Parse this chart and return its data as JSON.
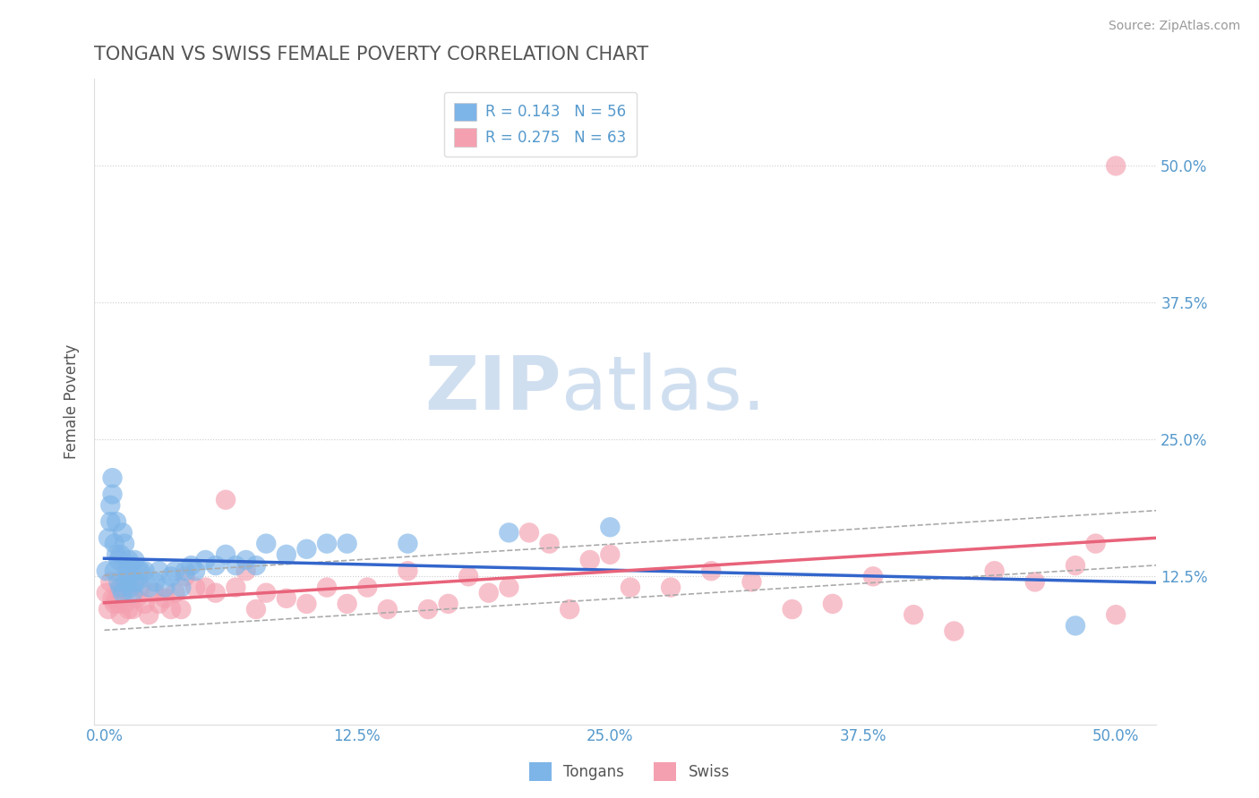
{
  "title": "TONGAN VS SWISS FEMALE POVERTY CORRELATION CHART",
  "source_text": "Source: ZipAtlas.com",
  "ylabel": "Female Poverty",
  "xlim": [
    -0.005,
    0.52
  ],
  "ylim": [
    -0.01,
    0.58
  ],
  "xtick_labels": [
    "0.0%",
    "",
    "",
    "",
    "",
    "",
    "",
    "",
    "12.5%",
    "",
    "",
    "",
    "",
    "",
    "",
    "",
    "25.0%",
    "",
    "",
    "",
    "",
    "",
    "",
    "",
    "37.5%",
    "",
    "",
    "",
    "",
    "",
    "",
    "",
    "50.0%"
  ],
  "xtick_vals": [
    0.0,
    0.125,
    0.25,
    0.375,
    0.5
  ],
  "xtick_display": [
    "0.0%",
    "12.5%",
    "25.0%",
    "37.5%",
    "50.0%"
  ],
  "ytick_labels": [
    "12.5%",
    "25.0%",
    "37.5%",
    "50.0%"
  ],
  "ytick_vals": [
    0.125,
    0.25,
    0.375,
    0.5
  ],
  "legend_r_tongans": "0.143",
  "legend_n_tongans": "56",
  "legend_r_swiss": "0.275",
  "legend_n_swiss": "63",
  "tongans_color": "#7EB5E8",
  "swiss_color": "#F4A0B0",
  "tongans_line_color": "#3366CC",
  "swiss_line_color": "#E8637A",
  "dash_line_color": "#AAAAAA",
  "watermark_color": "#D0DFF0",
  "background_color": "#FFFFFF",
  "grid_color": "#CCCCCC",
  "title_color": "#555555",
  "axis_label_color": "#555555",
  "tick_label_color": "#5599CC",
  "legend_text_color": "#5599CC",
  "tongans_scatter": {
    "x": [
      0.001,
      0.002,
      0.003,
      0.003,
      0.004,
      0.004,
      0.005,
      0.005,
      0.006,
      0.006,
      0.007,
      0.007,
      0.008,
      0.008,
      0.009,
      0.009,
      0.01,
      0.01,
      0.011,
      0.011,
      0.012,
      0.012,
      0.013,
      0.013,
      0.014,
      0.015,
      0.015,
      0.016,
      0.017,
      0.018,
      0.02,
      0.022,
      0.025,
      0.027,
      0.03,
      0.033,
      0.035,
      0.038,
      0.04,
      0.043,
      0.045,
      0.05,
      0.055,
      0.06,
      0.065,
      0.07,
      0.075,
      0.08,
      0.09,
      0.1,
      0.11,
      0.12,
      0.15,
      0.2,
      0.25,
      0.48
    ],
    "y": [
      0.13,
      0.16,
      0.19,
      0.175,
      0.2,
      0.215,
      0.13,
      0.155,
      0.145,
      0.175,
      0.12,
      0.14,
      0.115,
      0.145,
      0.11,
      0.165,
      0.135,
      0.155,
      0.12,
      0.13,
      0.14,
      0.125,
      0.115,
      0.135,
      0.11,
      0.12,
      0.14,
      0.12,
      0.13,
      0.13,
      0.13,
      0.115,
      0.12,
      0.13,
      0.115,
      0.125,
      0.13,
      0.115,
      0.13,
      0.135,
      0.13,
      0.14,
      0.135,
      0.145,
      0.135,
      0.14,
      0.135,
      0.155,
      0.145,
      0.15,
      0.155,
      0.155,
      0.155,
      0.165,
      0.17,
      0.08
    ]
  },
  "swiss_scatter": {
    "x": [
      0.001,
      0.002,
      0.003,
      0.004,
      0.005,
      0.006,
      0.007,
      0.008,
      0.009,
      0.01,
      0.012,
      0.014,
      0.016,
      0.018,
      0.02,
      0.022,
      0.025,
      0.027,
      0.03,
      0.033,
      0.035,
      0.038,
      0.04,
      0.045,
      0.05,
      0.055,
      0.06,
      0.065,
      0.07,
      0.075,
      0.08,
      0.09,
      0.1,
      0.11,
      0.12,
      0.13,
      0.14,
      0.15,
      0.16,
      0.17,
      0.18,
      0.19,
      0.2,
      0.21,
      0.22,
      0.23,
      0.24,
      0.25,
      0.26,
      0.28,
      0.3,
      0.32,
      0.34,
      0.36,
      0.38,
      0.4,
      0.42,
      0.44,
      0.46,
      0.48,
      0.49,
      0.5,
      0.5
    ],
    "y": [
      0.11,
      0.095,
      0.12,
      0.105,
      0.1,
      0.105,
      0.1,
      0.09,
      0.115,
      0.1,
      0.095,
      0.095,
      0.105,
      0.115,
      0.1,
      0.09,
      0.11,
      0.1,
      0.105,
      0.095,
      0.11,
      0.095,
      0.125,
      0.115,
      0.115,
      0.11,
      0.195,
      0.115,
      0.13,
      0.095,
      0.11,
      0.105,
      0.1,
      0.115,
      0.1,
      0.115,
      0.095,
      0.13,
      0.095,
      0.1,
      0.125,
      0.11,
      0.115,
      0.165,
      0.155,
      0.095,
      0.14,
      0.145,
      0.115,
      0.115,
      0.13,
      0.12,
      0.095,
      0.1,
      0.125,
      0.09,
      0.075,
      0.13,
      0.12,
      0.135,
      0.155,
      0.5,
      0.09
    ]
  }
}
